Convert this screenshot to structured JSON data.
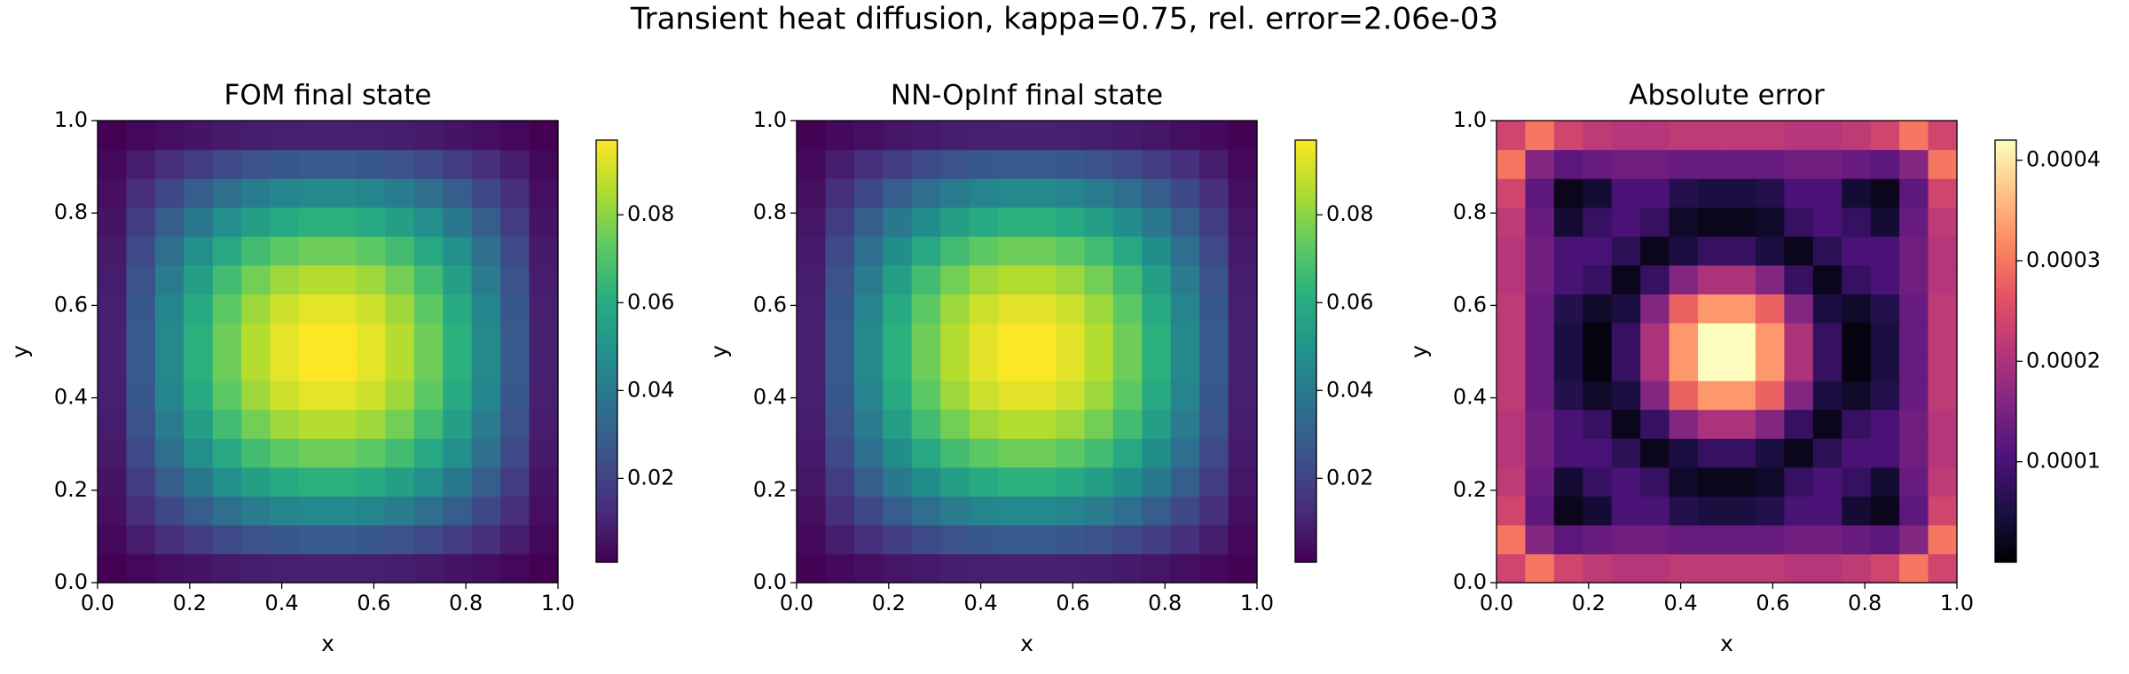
{
  "title": "Transient heat diffusion, kappa=0.75, rel. error=2.06e-03",
  "chart_data": [
    {
      "type": "heatmap",
      "title": "FOM final state",
      "xlabel": "x",
      "ylabel": "y",
      "xlim": [
        0,
        1
      ],
      "ylim": [
        0,
        1
      ],
      "xticks": [
        {
          "value": 0,
          "label": "0.0"
        },
        0.2,
        0.4,
        0.6,
        0.8,
        {
          "value": 1,
          "label": "1.0"
        }
      ],
      "yticks": [
        {
          "value": 0,
          "label": "0.0"
        },
        0.2,
        0.4,
        0.6,
        0.8,
        {
          "value": 1,
          "label": "1.0"
        }
      ],
      "colormap": "viridis",
      "clim": [
        0.0009,
        0.097
      ],
      "cticks": [
        0.02,
        0.04,
        0.06,
        0.08
      ],
      "z": [
        [
          0.0009,
          0.0028,
          0.0045,
          0.0061,
          0.0074,
          0.0085,
          0.0092,
          0.0096,
          0.0096,
          0.0092,
          0.0085,
          0.0074,
          0.0061,
          0.0045,
          0.0028,
          0.0009
        ],
        [
          0.0028,
          0.0082,
          0.0134,
          0.018,
          0.022,
          0.025,
          0.0272,
          0.0283,
          0.0283,
          0.0272,
          0.025,
          0.022,
          0.018,
          0.0134,
          0.0082,
          0.0028
        ],
        [
          0.0045,
          0.0134,
          0.0218,
          0.0293,
          0.0357,
          0.0407,
          0.0442,
          0.046,
          0.046,
          0.0442,
          0.0407,
          0.0357,
          0.0293,
          0.0218,
          0.0134,
          0.0045
        ],
        [
          0.0061,
          0.018,
          0.0293,
          0.0394,
          0.048,
          0.0548,
          0.0594,
          0.0618,
          0.0618,
          0.0594,
          0.0548,
          0.048,
          0.0394,
          0.0293,
          0.018,
          0.0061
        ],
        [
          0.0074,
          0.022,
          0.0357,
          0.048,
          0.0586,
          0.0669,
          0.0725,
          0.0754,
          0.0754,
          0.0725,
          0.0669,
          0.0586,
          0.048,
          0.0357,
          0.022,
          0.0074
        ],
        [
          0.0085,
          0.025,
          0.0407,
          0.0548,
          0.0669,
          0.0762,
          0.0827,
          0.086,
          0.086,
          0.0827,
          0.0762,
          0.0669,
          0.0548,
          0.0407,
          0.025,
          0.0085
        ],
        [
          0.0092,
          0.0272,
          0.0442,
          0.0594,
          0.0725,
          0.0827,
          0.0898,
          0.0933,
          0.0933,
          0.0898,
          0.0827,
          0.0725,
          0.0594,
          0.0442,
          0.0272,
          0.0092
        ],
        [
          0.0096,
          0.0283,
          0.046,
          0.0618,
          0.0754,
          0.086,
          0.0933,
          0.097,
          0.097,
          0.0933,
          0.086,
          0.0754,
          0.0618,
          0.046,
          0.0283,
          0.0096
        ],
        [
          0.0096,
          0.0283,
          0.046,
          0.0618,
          0.0754,
          0.086,
          0.0933,
          0.097,
          0.097,
          0.0933,
          0.086,
          0.0754,
          0.0618,
          0.046,
          0.0283,
          0.0096
        ],
        [
          0.0092,
          0.0272,
          0.0442,
          0.0594,
          0.0725,
          0.0827,
          0.0898,
          0.0933,
          0.0933,
          0.0898,
          0.0827,
          0.0725,
          0.0594,
          0.0442,
          0.0272,
          0.0092
        ],
        [
          0.0085,
          0.025,
          0.0407,
          0.0548,
          0.0669,
          0.0762,
          0.0827,
          0.086,
          0.086,
          0.0827,
          0.0762,
          0.0669,
          0.0548,
          0.0407,
          0.025,
          0.0085
        ],
        [
          0.0074,
          0.022,
          0.0357,
          0.048,
          0.0586,
          0.0669,
          0.0725,
          0.0754,
          0.0754,
          0.0725,
          0.0669,
          0.0586,
          0.048,
          0.0357,
          0.022,
          0.0074
        ],
        [
          0.0061,
          0.018,
          0.0293,
          0.0394,
          0.048,
          0.0548,
          0.0594,
          0.0618,
          0.0618,
          0.0594,
          0.0548,
          0.048,
          0.0394,
          0.0293,
          0.018,
          0.0061
        ],
        [
          0.0045,
          0.0134,
          0.0218,
          0.0293,
          0.0357,
          0.0407,
          0.0442,
          0.046,
          0.046,
          0.0442,
          0.0407,
          0.0357,
          0.0293,
          0.0218,
          0.0134,
          0.0045
        ],
        [
          0.0028,
          0.0082,
          0.0134,
          0.018,
          0.022,
          0.025,
          0.0272,
          0.0283,
          0.0283,
          0.0272,
          0.025,
          0.022,
          0.018,
          0.0134,
          0.0082,
          0.0028
        ],
        [
          0.0009,
          0.0028,
          0.0045,
          0.0061,
          0.0074,
          0.0085,
          0.0092,
          0.0096,
          0.0096,
          0.0092,
          0.0085,
          0.0074,
          0.0061,
          0.0045,
          0.0028,
          0.0009
        ]
      ]
    },
    {
      "type": "heatmap",
      "title": "NN-OpInf final state",
      "xlabel": "x",
      "ylabel": "y",
      "xlim": [
        0,
        1
      ],
      "ylim": [
        0,
        1
      ],
      "xticks": [
        {
          "value": 0,
          "label": "0.0"
        },
        0.2,
        0.4,
        0.6,
        0.8,
        {
          "value": 1,
          "label": "1.0"
        }
      ],
      "yticks": [
        {
          "value": 0,
          "label": "0.0"
        },
        0.2,
        0.4,
        0.6,
        0.8,
        {
          "value": 1,
          "label": "1.0"
        }
      ],
      "colormap": "viridis",
      "clim": [
        0.0009,
        0.097
      ],
      "cticks": [
        0.02,
        0.04,
        0.06,
        0.08
      ],
      "z": [
        [
          0.0012,
          0.0031,
          0.0047,
          0.0063,
          0.0076,
          0.0087,
          0.0094,
          0.0098,
          0.0098,
          0.0094,
          0.0087,
          0.0076,
          0.0063,
          0.0047,
          0.0031,
          0.0012
        ],
        [
          0.0031,
          0.0083,
          0.0135,
          0.0181,
          0.0221,
          0.0251,
          0.0273,
          0.0284,
          0.0284,
          0.0273,
          0.0251,
          0.0221,
          0.0181,
          0.0135,
          0.0083,
          0.0031
        ],
        [
          0.0047,
          0.0135,
          0.0218,
          0.0293,
          0.0356,
          0.0406,
          0.0441,
          0.046,
          0.046,
          0.0441,
          0.0406,
          0.0356,
          0.0293,
          0.0218,
          0.0135,
          0.0047
        ],
        [
          0.0063,
          0.0181,
          0.0293,
          0.0393,
          0.0479,
          0.0547,
          0.0594,
          0.0618,
          0.0618,
          0.0594,
          0.0547,
          0.0479,
          0.0393,
          0.0293,
          0.0181,
          0.0063
        ],
        [
          0.0076,
          0.0221,
          0.0356,
          0.0479,
          0.0586,
          0.0669,
          0.0724,
          0.0753,
          0.0753,
          0.0724,
          0.0669,
          0.0586,
          0.0479,
          0.0356,
          0.0221,
          0.0076
        ],
        [
          0.0087,
          0.0251,
          0.0406,
          0.0547,
          0.0669,
          0.0762,
          0.0825,
          0.0858,
          0.0858,
          0.0825,
          0.0762,
          0.0669,
          0.0547,
          0.0406,
          0.0251,
          0.0087
        ],
        [
          0.0094,
          0.0273,
          0.0441,
          0.0594,
          0.0724,
          0.0825,
          0.0895,
          0.093,
          0.093,
          0.0895,
          0.0825,
          0.0724,
          0.0594,
          0.0441,
          0.0273,
          0.0094
        ],
        [
          0.0098,
          0.0284,
          0.046,
          0.0618,
          0.0753,
          0.0858,
          0.093,
          0.0966,
          0.0966,
          0.093,
          0.0858,
          0.0753,
          0.0618,
          0.046,
          0.0284,
          0.0098
        ],
        [
          0.0098,
          0.0284,
          0.046,
          0.0618,
          0.0753,
          0.0858,
          0.093,
          0.0966,
          0.0966,
          0.093,
          0.0858,
          0.0753,
          0.0618,
          0.046,
          0.0284,
          0.0098
        ],
        [
          0.0094,
          0.0273,
          0.0441,
          0.0594,
          0.0724,
          0.0825,
          0.0895,
          0.093,
          0.093,
          0.0895,
          0.0825,
          0.0724,
          0.0594,
          0.0441,
          0.0273,
          0.0094
        ],
        [
          0.0087,
          0.0251,
          0.0406,
          0.0547,
          0.0669,
          0.0762,
          0.0825,
          0.0858,
          0.0858,
          0.0825,
          0.0762,
          0.0669,
          0.0547,
          0.0406,
          0.0251,
          0.0087
        ],
        [
          0.0076,
          0.0221,
          0.0356,
          0.0479,
          0.0586,
          0.0669,
          0.0724,
          0.0753,
          0.0753,
          0.0724,
          0.0669,
          0.0586,
          0.0479,
          0.0356,
          0.0221,
          0.0076
        ],
        [
          0.0063,
          0.0181,
          0.0293,
          0.0393,
          0.0479,
          0.0547,
          0.0594,
          0.0618,
          0.0618,
          0.0594,
          0.0547,
          0.0479,
          0.0393,
          0.0293,
          0.0181,
          0.0063
        ],
        [
          0.0047,
          0.0135,
          0.0218,
          0.0293,
          0.0356,
          0.0406,
          0.0441,
          0.046,
          0.046,
          0.0441,
          0.0406,
          0.0356,
          0.0293,
          0.0218,
          0.0135,
          0.0047
        ],
        [
          0.0031,
          0.0083,
          0.0135,
          0.0181,
          0.0221,
          0.0251,
          0.0273,
          0.0284,
          0.0284,
          0.0273,
          0.0251,
          0.0221,
          0.0181,
          0.0135,
          0.0083,
          0.0031
        ],
        [
          0.0012,
          0.0031,
          0.0047,
          0.0063,
          0.0076,
          0.0087,
          0.0094,
          0.0098,
          0.0098,
          0.0094,
          0.0087,
          0.0076,
          0.0063,
          0.0047,
          0.0031,
          0.0012
        ]
      ]
    },
    {
      "type": "heatmap",
      "title": "Absolute error",
      "xlabel": "x",
      "ylabel": "y",
      "xlim": [
        0,
        1
      ],
      "ylim": [
        0,
        1
      ],
      "xticks": [
        {
          "value": 0,
          "label": "0.0"
        },
        0.2,
        0.4,
        0.6,
        0.8,
        {
          "value": 1,
          "label": "1.0"
        }
      ],
      "yticks": [
        {
          "value": 0,
          "label": "0.0"
        },
        0.2,
        0.4,
        0.6,
        0.8,
        {
          "value": 1,
          "label": "1.0"
        }
      ],
      "colormap": "magma",
      "clim": [
        0,
        0.00042
      ],
      "cticks": [
        0.0001,
        0.0002,
        0.0003,
        0.0004
      ],
      "z": [
        [
          0.00024,
          0.0003,
          0.00024,
          0.00022,
          0.00021,
          0.00021,
          0.00022,
          0.00022,
          0.00022,
          0.00022,
          0.00021,
          0.00021,
          0.00022,
          0.00024,
          0.0003,
          0.00024
        ],
        [
          0.0003,
          0.00016,
          0.00012,
          0.00013,
          0.00014,
          0.00014,
          0.00013,
          0.00013,
          0.00013,
          0.00013,
          0.00014,
          0.00014,
          0.00013,
          0.00012,
          0.00016,
          0.0003
        ],
        [
          0.00024,
          0.00012,
          2e-05,
          4e-05,
          0.0001,
          0.0001,
          6e-05,
          5e-05,
          5e-05,
          6e-05,
          0.0001,
          0.0001,
          4e-05,
          2e-05,
          0.00012,
          0.00024
        ],
        [
          0.00022,
          0.00013,
          4e-05,
          8e-05,
          0.0001,
          8e-05,
          3e-05,
          2e-05,
          2e-05,
          3e-05,
          8e-05,
          0.0001,
          8e-05,
          4e-05,
          0.00013,
          0.00022
        ],
        [
          0.00021,
          0.00014,
          0.0001,
          0.0001,
          7e-05,
          2e-05,
          5e-05,
          8e-05,
          8e-05,
          5e-05,
          2e-05,
          7e-05,
          0.0001,
          0.0001,
          0.00014,
          0.00021
        ],
        [
          0.00021,
          0.00014,
          0.0001,
          8e-05,
          2e-05,
          8e-05,
          0.00016,
          0.0002,
          0.0002,
          0.00016,
          8e-05,
          2e-05,
          8e-05,
          0.0001,
          0.00014,
          0.00021
        ],
        [
          0.00022,
          0.00013,
          6e-05,
          3e-05,
          5e-05,
          0.00016,
          0.00028,
          0.00033,
          0.00033,
          0.00028,
          0.00016,
          5e-05,
          3e-05,
          6e-05,
          0.00013,
          0.00022
        ],
        [
          0.00022,
          0.00013,
          5e-05,
          1e-05,
          8e-05,
          0.0002,
          0.00033,
          0.00042,
          0.00042,
          0.00033,
          0.0002,
          8e-05,
          1e-05,
          5e-05,
          0.00013,
          0.00022
        ],
        [
          0.00022,
          0.00013,
          5e-05,
          1e-05,
          8e-05,
          0.0002,
          0.00033,
          0.00042,
          0.00042,
          0.00033,
          0.0002,
          8e-05,
          1e-05,
          5e-05,
          0.00013,
          0.00022
        ],
        [
          0.00022,
          0.00013,
          6e-05,
          3e-05,
          5e-05,
          0.00016,
          0.00028,
          0.00033,
          0.00033,
          0.00028,
          0.00016,
          5e-05,
          3e-05,
          6e-05,
          0.00013,
          0.00022
        ],
        [
          0.00021,
          0.00014,
          0.0001,
          8e-05,
          2e-05,
          8e-05,
          0.00016,
          0.0002,
          0.0002,
          0.00016,
          8e-05,
          2e-05,
          8e-05,
          0.0001,
          0.00014,
          0.00021
        ],
        [
          0.00021,
          0.00014,
          0.0001,
          0.0001,
          7e-05,
          2e-05,
          5e-05,
          8e-05,
          8e-05,
          5e-05,
          2e-05,
          7e-05,
          0.0001,
          0.0001,
          0.00014,
          0.00021
        ],
        [
          0.00022,
          0.00013,
          4e-05,
          8e-05,
          0.0001,
          8e-05,
          3e-05,
          2e-05,
          2e-05,
          3e-05,
          8e-05,
          0.0001,
          8e-05,
          4e-05,
          0.00013,
          0.00022
        ],
        [
          0.00024,
          0.00012,
          2e-05,
          4e-05,
          0.0001,
          0.0001,
          6e-05,
          5e-05,
          5e-05,
          6e-05,
          0.0001,
          0.0001,
          4e-05,
          2e-05,
          0.00012,
          0.00024
        ],
        [
          0.0003,
          0.00016,
          0.00012,
          0.00013,
          0.00014,
          0.00014,
          0.00013,
          0.00013,
          0.00013,
          0.00013,
          0.00014,
          0.00014,
          0.00013,
          0.00012,
          0.00016,
          0.0003
        ],
        [
          0.00024,
          0.0003,
          0.00024,
          0.00022,
          0.00021,
          0.00021,
          0.00022,
          0.00022,
          0.00022,
          0.00022,
          0.00021,
          0.00021,
          0.00022,
          0.00024,
          0.0003,
          0.00024
        ]
      ]
    }
  ]
}
